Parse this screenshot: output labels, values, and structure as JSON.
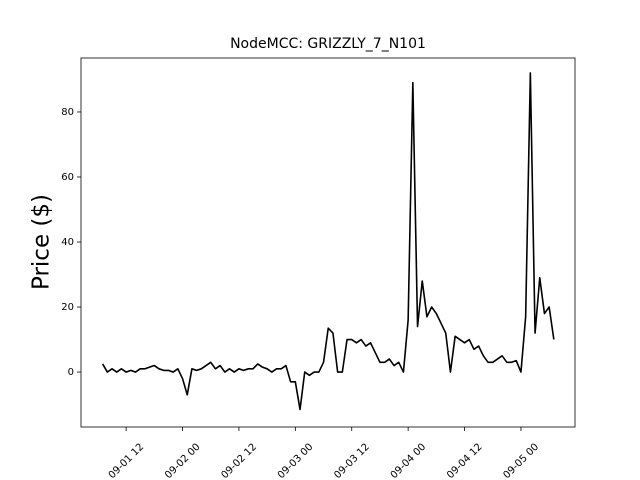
{
  "chart_data": {
    "type": "line",
    "title": "NodeMCC: GRIZZLY_7_N101",
    "y_label": "Price ($)",
    "x": [
      7,
      8,
      9,
      10,
      11,
      12,
      13,
      14,
      15,
      16,
      17,
      18,
      19,
      20,
      21,
      22,
      23,
      24,
      25,
      26,
      27,
      28,
      29,
      30,
      31,
      32,
      33,
      34,
      35,
      36,
      37,
      38,
      39,
      40,
      41,
      42,
      43,
      44,
      45,
      46,
      47,
      48,
      49,
      50,
      51,
      52,
      53,
      54,
      55,
      56,
      57,
      58,
      59,
      60,
      61,
      62,
      63,
      64,
      65,
      66,
      67,
      68,
      69,
      70,
      71,
      72,
      73,
      74,
      75,
      76,
      77,
      78,
      79,
      80,
      81,
      82,
      83,
      84,
      85,
      86,
      87,
      88,
      89,
      90,
      91,
      92,
      93,
      94,
      95,
      96,
      97,
      98,
      99,
      100,
      101,
      102,
      103
    ],
    "series": [
      {
        "name": "Price",
        "color": "#000000",
        "values": [
          2.5,
          0,
          1,
          0,
          1,
          0,
          0.5,
          0,
          1,
          1,
          1.5,
          2,
          1,
          0.5,
          0.5,
          0,
          1,
          -2,
          -7,
          1,
          0.5,
          1,
          2,
          3,
          1,
          2,
          0,
          1,
          0,
          1,
          0.5,
          1,
          1,
          2.5,
          1.5,
          1,
          0,
          1,
          1,
          2,
          -3,
          -3,
          -11.5,
          0,
          -1,
          0,
          0,
          3,
          13.5,
          12,
          0,
          0,
          10,
          10,
          9,
          10,
          8,
          9,
          6,
          3,
          3,
          4,
          2,
          3,
          0,
          16,
          89,
          14,
          28,
          17,
          20,
          18,
          15,
          12,
          0,
          11,
          10,
          9,
          10,
          7,
          8,
          5,
          3,
          3,
          4,
          5,
          3,
          3,
          3.5,
          0,
          17,
          92,
          12,
          29,
          18,
          20,
          10
        ]
      }
    ],
    "xlim": [
      2.4,
      107.5
    ],
    "xticks": [
      {
        "value": 12,
        "label": "09-01 12"
      },
      {
        "value": 24,
        "label": "09-02 00"
      },
      {
        "value": 36,
        "label": "09-02 12"
      },
      {
        "value": 48,
        "label": "09-03 00"
      },
      {
        "value": 60,
        "label": "09-03 12"
      },
      {
        "value": 72,
        "label": "09-04 00"
      },
      {
        "value": 84,
        "label": "09-04 12"
      },
      {
        "value": 96,
        "label": "09-05 00"
      }
    ],
    "ylim": [
      -16.9,
      96.6
    ],
    "yticks": [
      0,
      20,
      40,
      60,
      80
    ]
  }
}
